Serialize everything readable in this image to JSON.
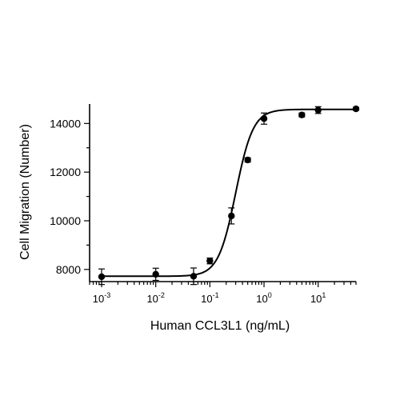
{
  "chart_data": {
    "type": "scatter",
    "xlabel": "Human CCL3L1 (ng/mL)",
    "ylabel": "Cell Migration (Number)",
    "x_scale": "log",
    "xlim": [
      0.0006,
      50
    ],
    "ylim": [
      7500,
      14800
    ],
    "x_ticks": [
      {
        "value": 0.001,
        "base": "10",
        "exp": "-3"
      },
      {
        "value": 0.01,
        "base": "10",
        "exp": "-2"
      },
      {
        "value": 0.1,
        "base": "10",
        "exp": "-1"
      },
      {
        "value": 1,
        "base": "10",
        "exp": "0"
      },
      {
        "value": 10,
        "base": "10",
        "exp": "1"
      }
    ],
    "y_ticks": [
      8000,
      10000,
      12000,
      14000
    ],
    "grid": false,
    "legend": "none",
    "points": [
      {
        "x": 0.001,
        "y": 7700,
        "err": 320
      },
      {
        "x": 0.01,
        "y": 7800,
        "err": 250
      },
      {
        "x": 0.05,
        "y": 7720,
        "err": 340
      },
      {
        "x": 0.1,
        "y": 8350,
        "err": 120
      },
      {
        "x": 0.25,
        "y": 10200,
        "err": 330
      },
      {
        "x": 0.5,
        "y": 12500,
        "err": 90
      },
      {
        "x": 1,
        "y": 14200,
        "err": 230
      },
      {
        "x": 5,
        "y": 14350,
        "err": 80
      },
      {
        "x": 10,
        "y": 14550,
        "err": 140
      },
      {
        "x": 50,
        "y": 14600,
        "err": 60
      }
    ],
    "fit": {
      "bottom": 7720,
      "top": 14580,
      "ec50": 0.3,
      "hill": 2.7
    },
    "color": "#000000"
  }
}
